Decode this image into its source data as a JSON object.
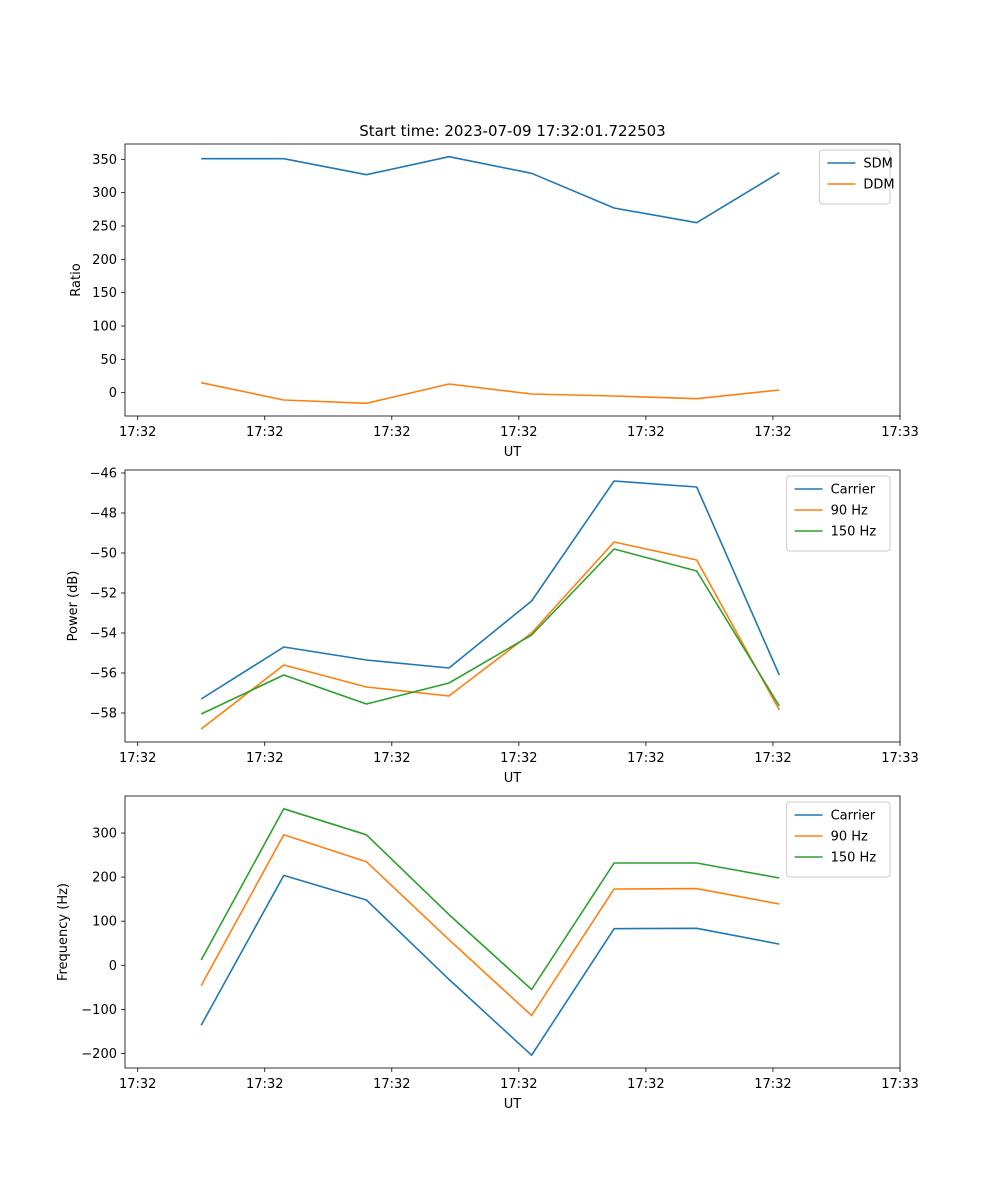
{
  "figure_title": "Start time: 2023-07-09 17:32:01.722503",
  "chart_data": [
    {
      "type": "line",
      "xlabel": "UT",
      "ylabel": "Ratio",
      "x_ticks": [
        "17:32",
        "17:32",
        "17:32",
        "17:32",
        "17:32",
        "17:32",
        "17:33"
      ],
      "x": [
        0.5,
        1.15,
        1.8,
        2.45,
        3.1,
        3.75,
        4.4,
        5.05
      ],
      "xlim": [
        -0.1,
        6.0
      ],
      "ylim": [
        -35,
        373
      ],
      "yticks": [
        0,
        50,
        100,
        150,
        200,
        250,
        300,
        350
      ],
      "legend_position": "upper-right",
      "series": [
        {
          "name": "SDM",
          "color": "#1f77b4",
          "values": [
            351,
            351,
            327,
            354,
            329,
            277,
            255,
            330
          ]
        },
        {
          "name": "DDM",
          "color": "#ff7f0e",
          "values": [
            15,
            -11,
            -16,
            13,
            -2,
            -5,
            -9,
            4
          ]
        }
      ]
    },
    {
      "type": "line",
      "xlabel": "UT",
      "ylabel": "Power (dB)",
      "x_ticks": [
        "17:32",
        "17:32",
        "17:32",
        "17:32",
        "17:32",
        "17:32",
        "17:33"
      ],
      "x": [
        0.5,
        1.15,
        1.8,
        2.45,
        3.1,
        3.75,
        4.4,
        5.05
      ],
      "xlim": [
        -0.1,
        6.0
      ],
      "ylim": [
        -59.45,
        -45.85
      ],
      "yticks": [
        -58,
        -56,
        -54,
        -52,
        -50,
        -48,
        -46
      ],
      "legend_position": "upper-right",
      "series": [
        {
          "name": "Carrier",
          "color": "#1f77b4",
          "values": [
            -57.3,
            -54.7,
            -55.35,
            -55.75,
            -52.4,
            -46.4,
            -46.7,
            -56.1
          ]
        },
        {
          "name": "90 Hz",
          "color": "#ff7f0e",
          "values": [
            -58.8,
            -55.6,
            -56.7,
            -57.15,
            -54.0,
            -49.45,
            -50.35,
            -57.85
          ]
        },
        {
          "name": "150 Hz",
          "color": "#2ca02c",
          "values": [
            -58.05,
            -56.1,
            -57.55,
            -56.5,
            -54.1,
            -49.8,
            -50.9,
            -57.65
          ]
        }
      ]
    },
    {
      "type": "line",
      "xlabel": "UT",
      "ylabel": "Frequency (Hz)",
      "x_ticks": [
        "17:32",
        "17:32",
        "17:32",
        "17:32",
        "17:32",
        "17:32",
        "17:33"
      ],
      "x": [
        0.5,
        1.15,
        1.8,
        2.45,
        3.1,
        3.75,
        4.4,
        5.05
      ],
      "xlim": [
        -0.1,
        6.0
      ],
      "ylim": [
        -233,
        384
      ],
      "yticks": [
        -200,
        -100,
        0,
        100,
        200,
        300
      ],
      "legend_position": "upper-right",
      "series": [
        {
          "name": "Carrier",
          "color": "#1f77b4",
          "values": [
            -136,
            204,
            148,
            -32,
            -204,
            83,
            84,
            48
          ]
        },
        {
          "name": "90 Hz",
          "color": "#ff7f0e",
          "values": [
            -46,
            296,
            235,
            58,
            -114,
            173,
            174,
            139
          ]
        },
        {
          "name": "150 Hz",
          "color": "#2ca02c",
          "values": [
            12,
            355,
            296,
            115,
            -55,
            232,
            232,
            198
          ]
        }
      ]
    }
  ]
}
